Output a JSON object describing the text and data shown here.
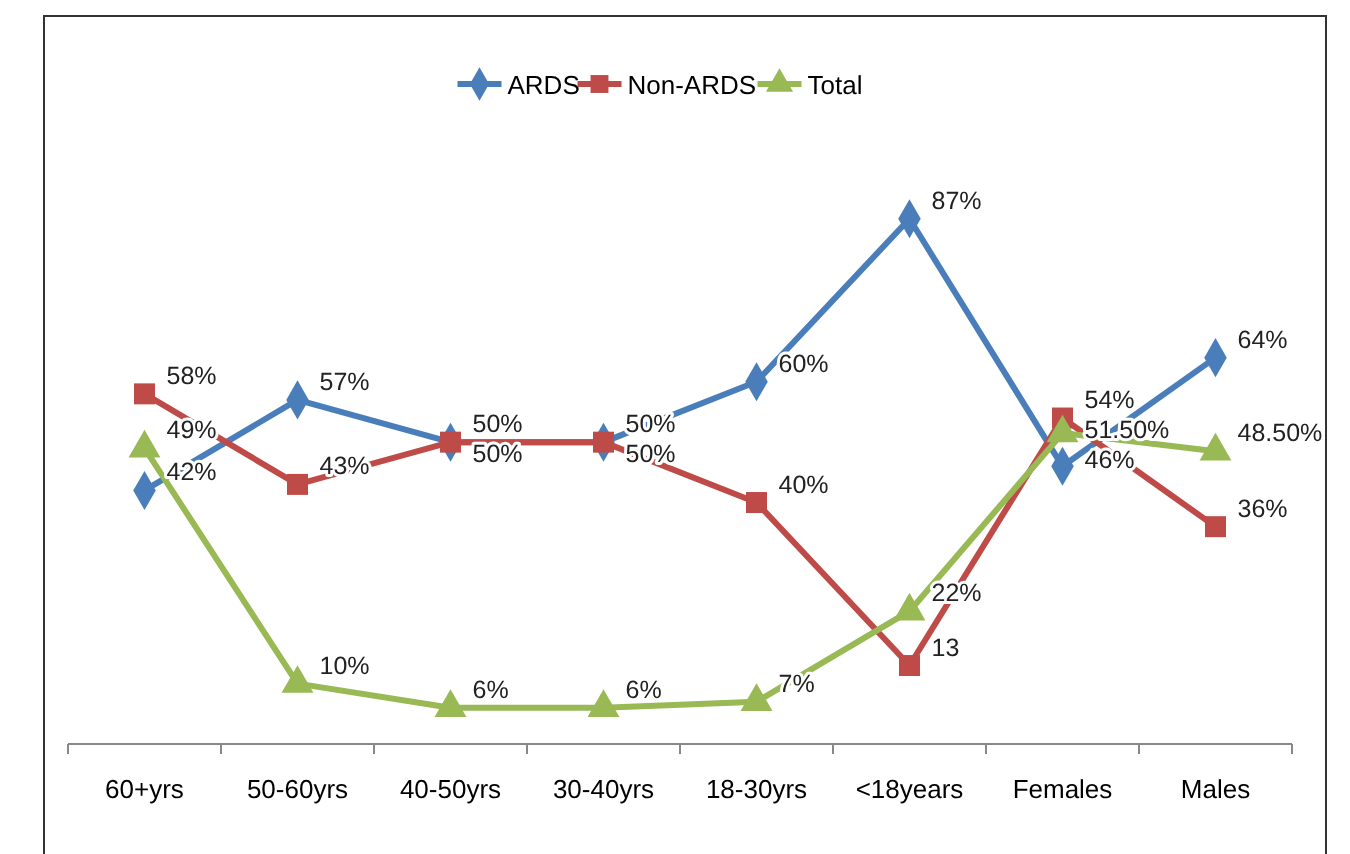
{
  "chart_data": {
    "type": "line",
    "categories": [
      "60+yrs",
      "50-60yrs",
      "40-50yrs",
      "30-40yrs",
      "18-30yrs",
      "<18years",
      "Females",
      "Males"
    ],
    "tick_labels": "x",
    "legend": "top",
    "series": [
      {
        "name": "ARDS",
        "color": "#4a7ebb",
        "marker": "diamond",
        "values": [
          42,
          57,
          50,
          50,
          60,
          87,
          46,
          64
        ],
        "value_labels": [
          "42%",
          "57%",
          "50%",
          "50%",
          "60%",
          "87%",
          "46%",
          "64%"
        ]
      },
      {
        "name": "Non-ARDS",
        "color": "#be4b48",
        "marker": "square",
        "values": [
          58,
          43,
          50,
          50,
          40,
          13,
          54,
          36
        ],
        "value_labels": [
          "58%",
          "43%",
          "50%",
          "50%",
          "40%",
          "13",
          "54%",
          "36%"
        ]
      },
      {
        "name": "Total",
        "color": "#98b954",
        "marker": "triangle",
        "values": [
          49,
          10,
          6,
          6,
          7,
          22,
          51.5,
          48.5
        ],
        "value_labels": [
          "49%",
          "10%",
          "6%",
          "6%",
          "7%",
          "22%",
          "51.50%",
          "48.50%"
        ]
      }
    ]
  }
}
